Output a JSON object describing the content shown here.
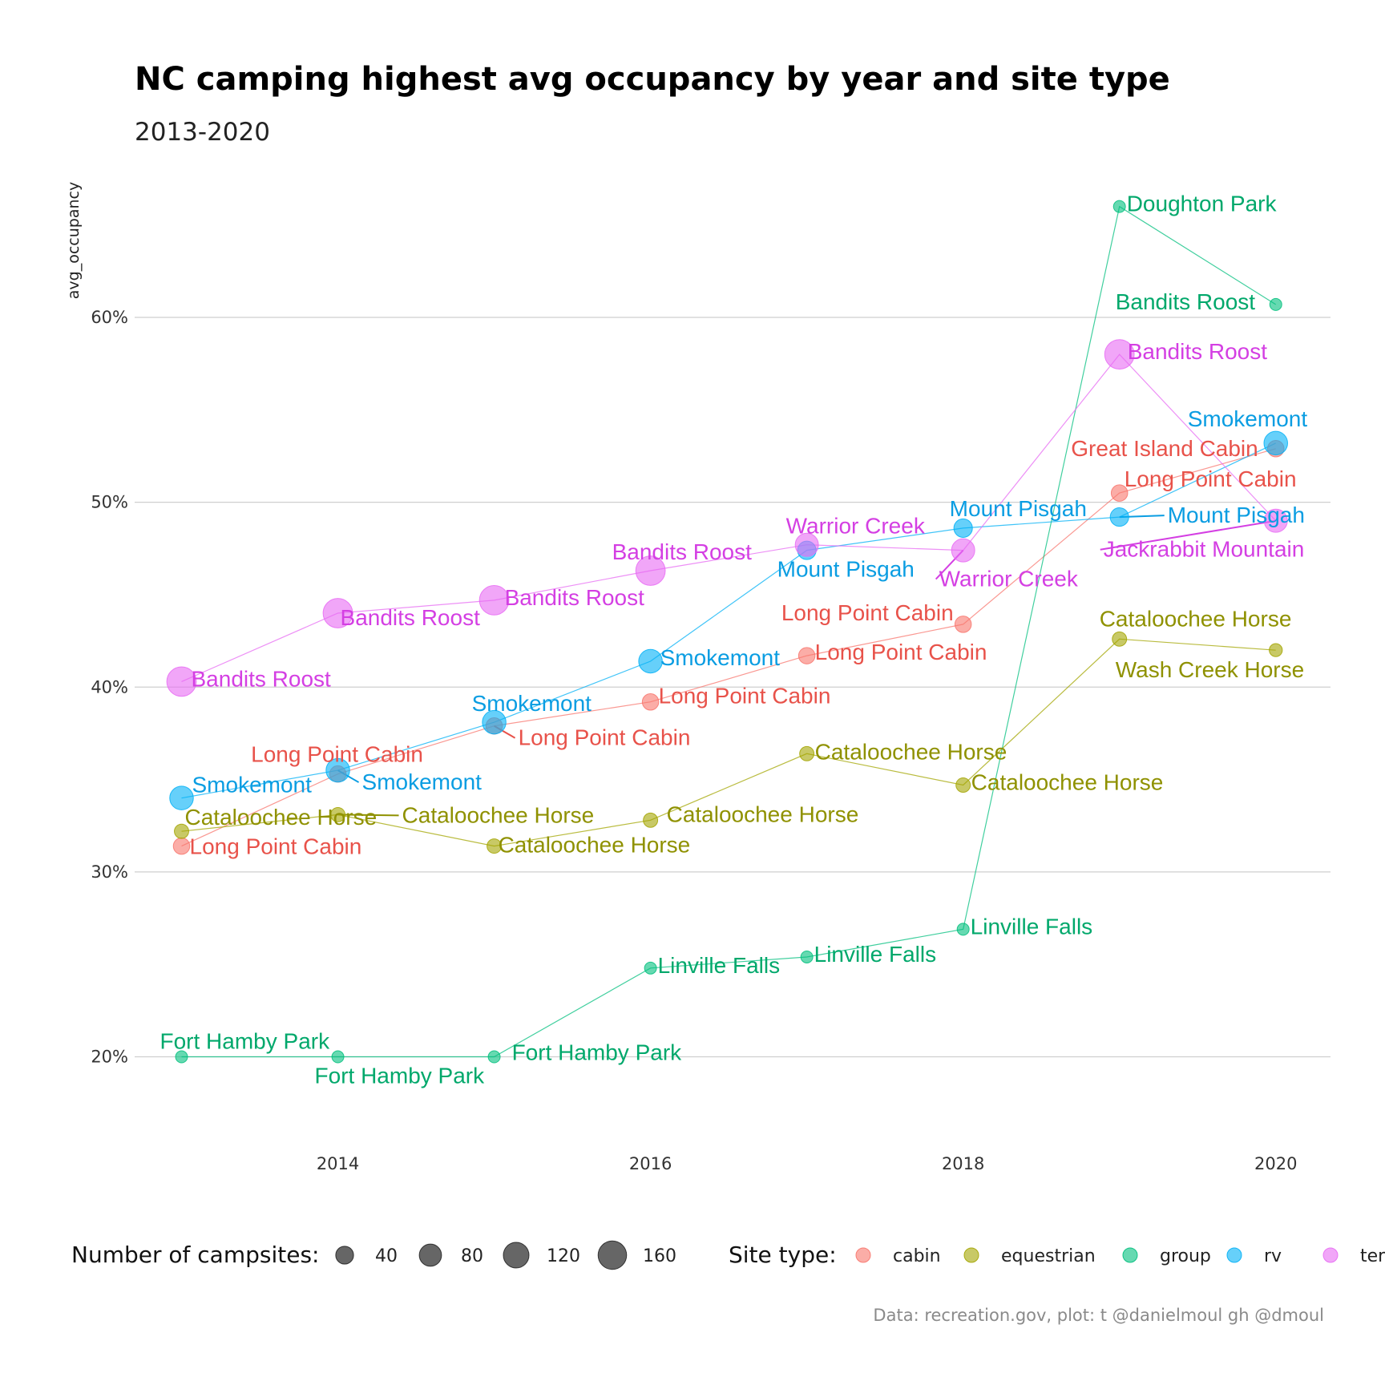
{
  "title": "NC camping highest avg occupancy by year and site type",
  "subtitle": "2013-2020",
  "caption": "Data: recreation.gov, plot: t @danielmoul gh @dmoul",
  "chart_data": {
    "type": "scatter",
    "xlabel": "",
    "ylabel": "avg_occupancy",
    "xlim": [
      2012.7,
      2020.35
    ],
    "ylim": [
      0.156,
      0.685
    ],
    "x_ticks": [
      2014,
      2016,
      2018,
      2020
    ],
    "x_tick_labels": [
      "2014",
      "2016",
      "2018",
      "2020"
    ],
    "y_ticks": [
      0.2,
      0.3,
      0.4,
      0.5,
      0.6
    ],
    "y_tick_labels": [
      "20%",
      "30%",
      "40%",
      "50%",
      "60%"
    ],
    "grid": true,
    "legend_position": "bottom",
    "colors": {
      "cabin": "#f8766d",
      "equestrian": "#a3a500",
      "group": "#00bf7d",
      "rv": "#00b0f6",
      "tent": "#e76bf3"
    },
    "label_colors": {
      "cabin": "#e8524a",
      "equestrian": "#8f9100",
      "group": "#00a86b",
      "rv": "#0a9de2",
      "tent": "#d43fe3"
    },
    "size_legend": {
      "title": "Number of campsites:",
      "values": [
        40,
        80,
        120,
        160
      ]
    },
    "color_legend": {
      "title": "Site type:",
      "entries": [
        "cabin",
        "equestrian",
        "group",
        "rv",
        "tent"
      ]
    },
    "series": [
      {
        "name": "cabin",
        "points": [
          {
            "x": 2013,
            "y": 0.314,
            "size": 30,
            "label": "Long Point Cabin"
          },
          {
            "x": 2014,
            "y": 0.353,
            "size": 30,
            "label": "Long Point Cabin"
          },
          {
            "x": 2015,
            "y": 0.379,
            "size": 30,
            "label": "Long Point Cabin"
          },
          {
            "x": 2016,
            "y": 0.392,
            "size": 30,
            "label": "Long Point Cabin"
          },
          {
            "x": 2017,
            "y": 0.417,
            "size": 30,
            "label": "Long Point Cabin"
          },
          {
            "x": 2018,
            "y": 0.434,
            "size": 30,
            "label": "Long Point Cabin"
          },
          {
            "x": 2019,
            "y": 0.505,
            "size": 30,
            "label": "Long Point Cabin"
          },
          {
            "x": 2020,
            "y": 0.529,
            "size": 30,
            "label": "Great Island Cabin"
          }
        ]
      },
      {
        "name": "equestrian",
        "points": [
          {
            "x": 2013,
            "y": 0.322,
            "size": 18,
            "label": "Cataloochee Horse"
          },
          {
            "x": 2014,
            "y": 0.331,
            "size": 18,
            "label": "Cataloochee Horse"
          },
          {
            "x": 2015,
            "y": 0.314,
            "size": 18,
            "label": "Cataloochee Horse"
          },
          {
            "x": 2016,
            "y": 0.328,
            "size": 18,
            "label": "Cataloochee Horse"
          },
          {
            "x": 2017,
            "y": 0.364,
            "size": 18,
            "label": "Cataloochee Horse"
          },
          {
            "x": 2018,
            "y": 0.347,
            "size": 18,
            "label": "Cataloochee Horse"
          },
          {
            "x": 2019,
            "y": 0.426,
            "size": 18,
            "label": "Cataloochee Horse"
          },
          {
            "x": 2020,
            "y": 0.42,
            "size": 12,
            "label": "Wash Creek Horse"
          }
        ]
      },
      {
        "name": "group",
        "points": [
          {
            "x": 2013,
            "y": 0.2,
            "size": 8,
            "label": "Fort Hamby Park"
          },
          {
            "x": 2014,
            "y": 0.2,
            "size": 8,
            "label": "Fort Hamby Park"
          },
          {
            "x": 2015,
            "y": 0.2,
            "size": 8,
            "label": "Fort Hamby Park"
          },
          {
            "x": 2016,
            "y": 0.248,
            "size": 8,
            "label": "Linville Falls"
          },
          {
            "x": 2017,
            "y": 0.254,
            "size": 8,
            "label": "Linville Falls"
          },
          {
            "x": 2018,
            "y": 0.269,
            "size": 8,
            "label": "Linville Falls"
          },
          {
            "x": 2019,
            "y": 0.66,
            "size": 8,
            "label": "Doughton Park"
          },
          {
            "x": 2020,
            "y": 0.607,
            "size": 8,
            "label": "Bandits Roost"
          }
        ]
      },
      {
        "name": "rv",
        "points": [
          {
            "x": 2013,
            "y": 0.34,
            "size": 95,
            "label": "Smokemont"
          },
          {
            "x": 2014,
            "y": 0.355,
            "size": 95,
            "label": "Smokemont"
          },
          {
            "x": 2015,
            "y": 0.381,
            "size": 95,
            "label": "Smokemont"
          },
          {
            "x": 2016,
            "y": 0.414,
            "size": 95,
            "label": "Smokemont"
          },
          {
            "x": 2017,
            "y": 0.474,
            "size": 45,
            "label": "Mount Pisgah"
          },
          {
            "x": 2018,
            "y": 0.486,
            "size": 45,
            "label": "Mount Pisgah"
          },
          {
            "x": 2019,
            "y": 0.492,
            "size": 45,
            "label": "Mount Pisgah"
          },
          {
            "x": 2020,
            "y": 0.532,
            "size": 95,
            "label": "Smokemont"
          }
        ]
      },
      {
        "name": "tent",
        "points": [
          {
            "x": 2013,
            "y": 0.403,
            "size": 175,
            "label": "Bandits Roost"
          },
          {
            "x": 2014,
            "y": 0.44,
            "size": 175,
            "label": "Bandits Roost"
          },
          {
            "x": 2015,
            "y": 0.447,
            "size": 175,
            "label": "Bandits Roost"
          },
          {
            "x": 2016,
            "y": 0.463,
            "size": 175,
            "label": "Bandits Roost"
          },
          {
            "x": 2017,
            "y": 0.477,
            "size": 90,
            "label": "Warrior Creek"
          },
          {
            "x": 2018,
            "y": 0.474,
            "size": 90,
            "label": "Warrior Creek"
          },
          {
            "x": 2019,
            "y": 0.58,
            "size": 175,
            "label": "Bandits Roost"
          },
          {
            "x": 2020,
            "y": 0.49,
            "size": 90,
            "label": "Jackrabbit Mountain"
          }
        ]
      }
    ]
  }
}
